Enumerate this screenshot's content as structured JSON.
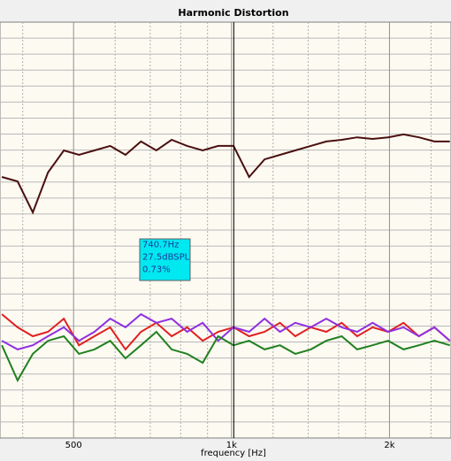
{
  "chart_data": {
    "type": "line",
    "title": "Harmonic Distortion",
    "x_label": "frequency [Hz]",
    "log_x": true,
    "grid": true,
    "x": [
      365,
      391,
      418,
      447,
      479,
      512,
      548,
      587,
      628,
      672,
      719,
      769,
      823,
      881,
      943,
      1009,
      1080,
      1156,
      1237,
      1323,
      1416,
      1516,
      1622,
      1736,
      1857,
      1988,
      2127,
      2276,
      2436,
      2607
    ],
    "xlim": [
      362,
      2620
    ],
    "xticks": [
      500,
      {
        "value": 1000,
        "label": "1k"
      },
      {
        "value": 2000,
        "label": "2k"
      }
    ],
    "xminor": [
      400,
      600,
      700,
      800,
      900,
      1200,
      1400,
      1600,
      1800,
      2400
    ],
    "ylim": [
      0,
      130
    ],
    "yticks": [
      5,
      10,
      15,
      20,
      25,
      30,
      35,
      40,
      45,
      50,
      55,
      60,
      65,
      70,
      75,
      80,
      85,
      90,
      95,
      100,
      105,
      110,
      115,
      120,
      125
    ],
    "series": [
      {
        "color": "#4a1010",
        "values": [
          81.6,
          80.2,
          70.5,
          83.0,
          89.9,
          88.5,
          89.9,
          91.3,
          88.5,
          92.7,
          89.9,
          93.2,
          91.3,
          89.9,
          91.3,
          91.3,
          81.6,
          87.1,
          88.5,
          89.9,
          91.3,
          92.7,
          93.2,
          94.0,
          93.5,
          94.0,
          94.9,
          94.0,
          92.7,
          92.7
        ]
      },
      {
        "color": "#e02020",
        "values": [
          38.7,
          34.6,
          31.8,
          33.2,
          37.3,
          29.0,
          31.8,
          34.6,
          27.7,
          33.2,
          36.0,
          31.8,
          34.6,
          30.4,
          33.2,
          34.6,
          31.8,
          33.2,
          36.0,
          31.8,
          34.6,
          33.2,
          36.0,
          31.8,
          34.6,
          33.2,
          36.0,
          31.8,
          34.6,
          30.4
        ]
      },
      {
        "color": "#9030e0",
        "values": [
          30.4,
          27.7,
          29.0,
          31.8,
          34.6,
          30.4,
          33.2,
          37.3,
          34.6,
          38.7,
          36.0,
          37.3,
          33.2,
          36.0,
          30.4,
          34.6,
          33.2,
          37.3,
          33.2,
          36.0,
          34.6,
          37.3,
          34.6,
          33.2,
          36.0,
          33.2,
          34.6,
          31.8,
          34.6,
          30.4
        ]
      },
      {
        "color": "#208020",
        "values": [
          29.0,
          18.0,
          26.3,
          30.4,
          31.8,
          26.3,
          27.7,
          30.4,
          24.9,
          29.0,
          33.2,
          27.7,
          26.3,
          23.5,
          31.8,
          29.0,
          30.4,
          27.7,
          29.0,
          26.3,
          27.7,
          30.4,
          31.8,
          27.7,
          29.0,
          30.4,
          27.7,
          29.0,
          30.4,
          29.0
        ]
      }
    ],
    "cursor_x": 1010,
    "tooltip": [
      "740.7Hz",
      "27.5dBSPL",
      "0.73%"
    ]
  }
}
